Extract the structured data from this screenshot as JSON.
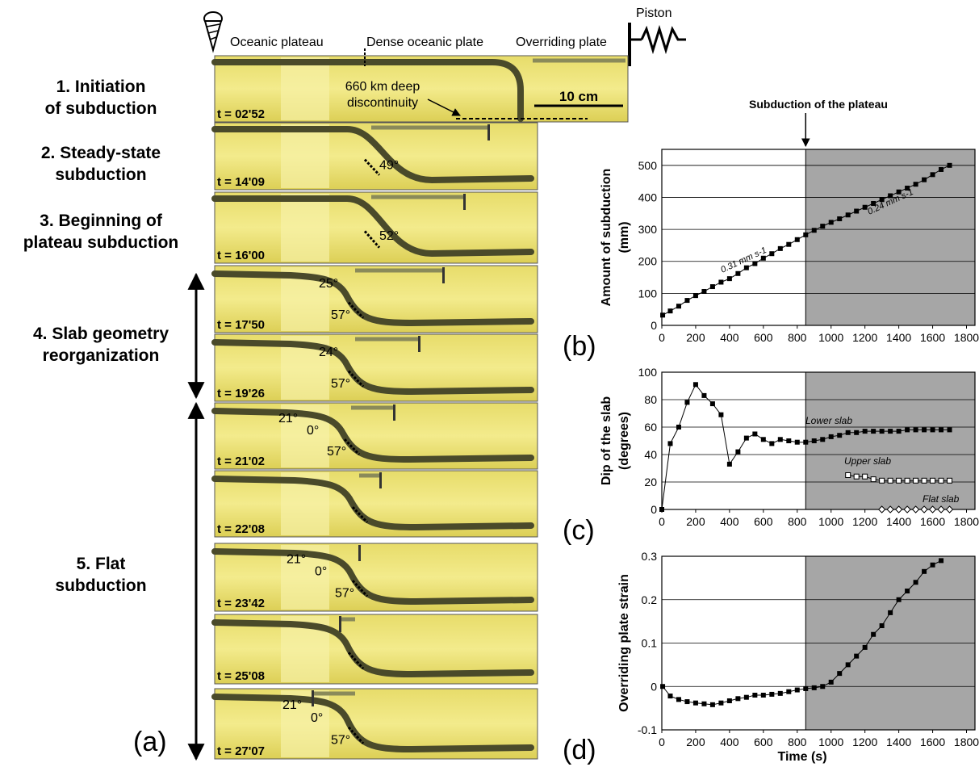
{
  "figure": {
    "panel_a_label": "(a)",
    "header": {
      "oceanic_plateau": "Oceanic plateau",
      "dense_oceanic_plate": "Dense oceanic plate",
      "overriding_plate": "Overriding plate",
      "piston": "Piston",
      "discontinuity": [
        "660 km deep",
        "discontinuity"
      ],
      "scale_bar": "10 cm"
    },
    "stages": [
      {
        "lines": [
          "1. Initiation",
          "of subduction"
        ]
      },
      {
        "lines": [
          "2. Steady-state",
          "subduction"
        ]
      },
      {
        "lines": [
          "3. Beginning of",
          "plateau subduction"
        ]
      },
      {
        "lines": [
          "4. Slab geometry",
          "reorganization"
        ]
      },
      {
        "lines": [
          "5. Flat",
          "subduction"
        ]
      }
    ],
    "snapshots": [
      {
        "time": "t = 02'52",
        "angles": []
      },
      {
        "time": "t = 14'09",
        "angles": [
          "49°"
        ]
      },
      {
        "time": "t = 16'00",
        "angles": [
          "52°"
        ]
      },
      {
        "time": "t = 17'50",
        "angles": [
          "25°",
          "57°"
        ]
      },
      {
        "time": "t = 19'26",
        "angles": [
          "24°",
          "57°"
        ]
      },
      {
        "time": "t = 21'02",
        "angles": [
          "21°",
          "0°",
          "57°"
        ]
      },
      {
        "time": "t = 22'08",
        "angles": []
      },
      {
        "time": "t = 23'42",
        "angles": [
          "21°",
          "0°",
          "57°"
        ]
      },
      {
        "time": "t = 25'08",
        "angles": []
      },
      {
        "time": "t = 27'07",
        "angles": [
          "21°",
          "0°",
          "57°"
        ]
      }
    ]
  },
  "chart_data": [
    {
      "panel": "(b)",
      "type": "line",
      "ylabel": [
        "Amount of subduction",
        "(mm)"
      ],
      "xlabel": "",
      "xlim": [
        0,
        1850
      ],
      "ylim": [
        0,
        550
      ],
      "xticks": [
        0,
        200,
        400,
        600,
        800,
        1000,
        1200,
        1400,
        1600,
        1800
      ],
      "yticks": [
        0,
        100,
        200,
        300,
        400,
        500
      ],
      "shade_from": 850,
      "annotation_top": "Subduction of the plateau",
      "rate_labels": [
        "0.31 mm s-1",
        "0.24 mm s-1"
      ],
      "series": [
        {
          "x": [
            5,
            50,
            100,
            150,
            200,
            250,
            300,
            350,
            400,
            450,
            500,
            550,
            600,
            650,
            700,
            750,
            800,
            850,
            900,
            950,
            1000,
            1050,
            1100,
            1150,
            1200,
            1250,
            1300,
            1350,
            1400,
            1450,
            1500,
            1550,
            1600,
            1650,
            1700
          ],
          "y": [
            32,
            45,
            60,
            78,
            93,
            106,
            121,
            135,
            146,
            162,
            180,
            193,
            210,
            224,
            240,
            253,
            268,
            283,
            297,
            310,
            322,
            333,
            345,
            357,
            369,
            381,
            393,
            405,
            417,
            429,
            441,
            455,
            471,
            487,
            500
          ]
        }
      ]
    },
    {
      "panel": "(c)",
      "type": "line",
      "ylabel": [
        "Dip of the slab",
        "(degrees)"
      ],
      "xlabel": "",
      "xlim": [
        0,
        1850
      ],
      "ylim": [
        0,
        100
      ],
      "xticks": [
        0,
        200,
        400,
        600,
        800,
        1000,
        1200,
        1400,
        1600,
        1800
      ],
      "yticks": [
        0,
        20,
        40,
        60,
        80,
        100
      ],
      "shade_from": 850,
      "series": [
        {
          "name": "Lower slab",
          "marker": "filled-square",
          "x": [
            0,
            50,
            100,
            150,
            200,
            250,
            300,
            350,
            400,
            450,
            500,
            550,
            600,
            650,
            700,
            750,
            800,
            850,
            900,
            950,
            1000,
            1050,
            1100,
            1150,
            1200,
            1250,
            1300,
            1350,
            1400,
            1450,
            1500,
            1550,
            1600,
            1650,
            1700
          ],
          "y": [
            0,
            48,
            60,
            78,
            91,
            83,
            77,
            69,
            33,
            42,
            52,
            55,
            51,
            48,
            51,
            50,
            49,
            49,
            50,
            51,
            53,
            54,
            56,
            56,
            57,
            57,
            57,
            57,
            57,
            58,
            58,
            58,
            58,
            58,
            58
          ]
        },
        {
          "name": "Upper slab",
          "marker": "open-square",
          "x": [
            1100,
            1150,
            1200,
            1250,
            1300,
            1350,
            1400,
            1450,
            1500,
            1550,
            1600,
            1650,
            1700
          ],
          "y": [
            25,
            24,
            24,
            22,
            21,
            21,
            21,
            21,
            21,
            21,
            21,
            21,
            21
          ]
        },
        {
          "name": "Flat slab",
          "marker": "open-diamond",
          "x": [
            1300,
            1350,
            1400,
            1450,
            1500,
            1550,
            1600,
            1650,
            1700
          ],
          "y": [
            0,
            0,
            0,
            0,
            0,
            0,
            0,
            0,
            0
          ]
        }
      ]
    },
    {
      "panel": "(d)",
      "type": "line",
      "ylabel": [
        "Overriding plate strain"
      ],
      "xlabel": "Time (s)",
      "xlim": [
        0,
        1850
      ],
      "ylim": [
        -0.1,
        0.3
      ],
      "xticks": [
        0,
        200,
        400,
        600,
        800,
        1000,
        1200,
        1400,
        1600,
        1800
      ],
      "yticks": [
        -0.1,
        0,
        0.1,
        0.2,
        0.3
      ],
      "shade_from": 850,
      "series": [
        {
          "x": [
            5,
            50,
            100,
            150,
            200,
            250,
            300,
            350,
            400,
            450,
            500,
            550,
            600,
            650,
            700,
            750,
            800,
            850,
            900,
            950,
            1000,
            1050,
            1100,
            1150,
            1200,
            1250,
            1300,
            1350,
            1400,
            1450,
            1500,
            1550,
            1600,
            1650
          ],
          "y": [
            0.0,
            -0.022,
            -0.03,
            -0.035,
            -0.038,
            -0.04,
            -0.042,
            -0.038,
            -0.033,
            -0.028,
            -0.025,
            -0.02,
            -0.02,
            -0.018,
            -0.016,
            -0.012,
            -0.008,
            -0.005,
            -0.003,
            0.0,
            0.01,
            0.03,
            0.05,
            0.07,
            0.09,
            0.12,
            0.14,
            0.17,
            0.2,
            0.22,
            0.24,
            0.265,
            0.28,
            0.29
          ]
        }
      ]
    }
  ]
}
